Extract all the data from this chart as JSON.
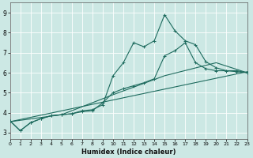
{
  "xlabel": "Humidex (Indice chaleur)",
  "xlim": [
    0,
    23
  ],
  "ylim": [
    2.7,
    9.5
  ],
  "xticks": [
    0,
    1,
    2,
    3,
    4,
    5,
    6,
    7,
    8,
    9,
    10,
    11,
    12,
    13,
    14,
    15,
    16,
    17,
    18,
    19,
    20,
    21,
    22,
    23
  ],
  "yticks": [
    3,
    4,
    5,
    6,
    7,
    8,
    9
  ],
  "bg_color": "#cce8e4",
  "line_color": "#1e6b5e",
  "grid_color": "#ffffff",
  "line1_x": [
    0,
    1,
    2,
    3,
    4,
    5,
    6,
    7,
    8,
    9,
    10,
    11,
    12,
    13,
    14,
    15,
    16,
    17,
    18,
    19,
    20,
    21,
    22,
    23
  ],
  "line1_y": [
    3.6,
    3.1,
    3.5,
    3.7,
    3.85,
    3.9,
    3.95,
    4.1,
    4.15,
    4.4,
    5.85,
    6.5,
    7.5,
    7.3,
    7.6,
    8.9,
    8.1,
    7.6,
    7.4,
    6.55,
    6.25,
    6.1,
    6.1,
    6.0
  ],
  "line2_x": [
    0,
    1,
    2,
    3,
    4,
    5,
    6,
    7,
    8,
    9,
    10,
    11,
    12,
    13,
    14,
    15,
    16,
    17,
    18,
    19,
    20,
    21,
    22,
    23
  ],
  "line2_y": [
    3.6,
    3.1,
    3.5,
    3.7,
    3.85,
    3.9,
    3.95,
    4.05,
    4.1,
    4.5,
    5.0,
    5.2,
    5.35,
    5.5,
    5.7,
    6.85,
    7.1,
    7.5,
    6.5,
    6.2,
    6.1,
    6.1,
    6.05,
    6.0
  ],
  "line3_x": [
    0,
    5,
    10,
    15,
    20,
    23
  ],
  "line3_y": [
    3.55,
    3.9,
    4.9,
    5.85,
    6.5,
    6.0
  ],
  "line4_x": [
    0,
    23
  ],
  "line4_y": [
    3.55,
    6.05
  ]
}
